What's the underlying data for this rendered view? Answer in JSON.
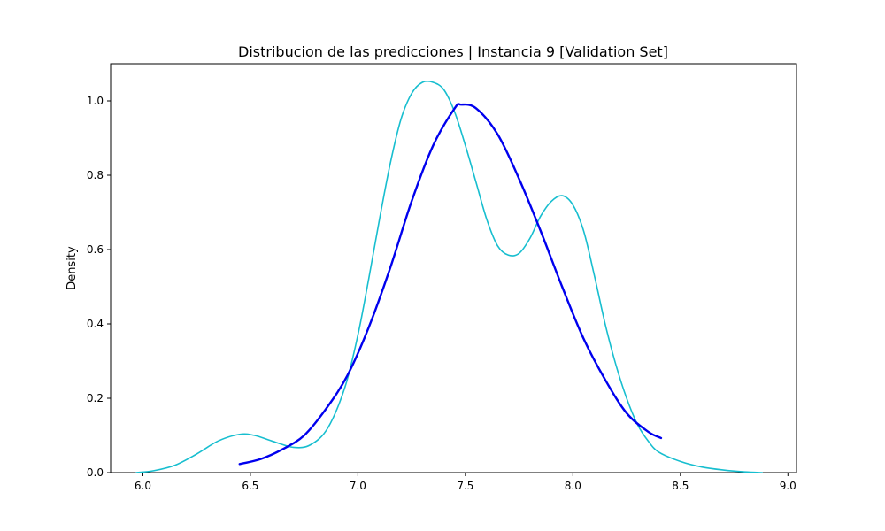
{
  "chart_data": {
    "type": "line",
    "title": "Distribucion de las predicciones | Instancia 9 [Validation Set]",
    "xlabel": "",
    "ylabel": "Density",
    "xlim": [
      5.85,
      9.04
    ],
    "ylim": [
      0,
      1.1
    ],
    "xticks": [
      6.0,
      6.5,
      7.0,
      7.5,
      8.0,
      8.5,
      9.0
    ],
    "xtick_labels": [
      "6.0",
      "6.5",
      "7.0",
      "7.5",
      "8.0",
      "8.5",
      "9.0"
    ],
    "yticks": [
      0.0,
      0.2,
      0.4,
      0.6,
      0.8,
      1.0
    ],
    "ytick_labels": [
      "0.0",
      "0.2",
      "0.4",
      "0.6",
      "0.8",
      "1.0"
    ],
    "grid": false,
    "series": [
      {
        "color": "#17becf",
        "kind": "kde",
        "points": [
          [
            5.97,
            0.0
          ],
          [
            6.05,
            0.005
          ],
          [
            6.15,
            0.02
          ],
          [
            6.25,
            0.05
          ],
          [
            6.35,
            0.085
          ],
          [
            6.45,
            0.103
          ],
          [
            6.52,
            0.1
          ],
          [
            6.6,
            0.085
          ],
          [
            6.7,
            0.068
          ],
          [
            6.78,
            0.075
          ],
          [
            6.86,
            0.12
          ],
          [
            6.94,
            0.23
          ],
          [
            7.0,
            0.37
          ],
          [
            7.05,
            0.52
          ],
          [
            7.1,
            0.68
          ],
          [
            7.15,
            0.83
          ],
          [
            7.2,
            0.95
          ],
          [
            7.25,
            1.02
          ],
          [
            7.3,
            1.05
          ],
          [
            7.35,
            1.05
          ],
          [
            7.4,
            1.03
          ],
          [
            7.45,
            0.97
          ],
          [
            7.5,
            0.88
          ],
          [
            7.55,
            0.78
          ],
          [
            7.6,
            0.68
          ],
          [
            7.65,
            0.61
          ],
          [
            7.7,
            0.585
          ],
          [
            7.75,
            0.59
          ],
          [
            7.8,
            0.63
          ],
          [
            7.85,
            0.69
          ],
          [
            7.9,
            0.73
          ],
          [
            7.95,
            0.745
          ],
          [
            8.0,
            0.72
          ],
          [
            8.05,
            0.65
          ],
          [
            8.1,
            0.53
          ],
          [
            8.15,
            0.4
          ],
          [
            8.2,
            0.29
          ],
          [
            8.25,
            0.2
          ],
          [
            8.3,
            0.13
          ],
          [
            8.35,
            0.085
          ],
          [
            8.4,
            0.055
          ],
          [
            8.5,
            0.03
          ],
          [
            8.6,
            0.015
          ],
          [
            8.7,
            0.007
          ],
          [
            8.8,
            0.002
          ],
          [
            8.88,
            0.0
          ]
        ]
      },
      {
        "color": "#0000ee",
        "kind": "normal-fit",
        "mean": 7.48,
        "std": 0.402,
        "x_range": [
          6.45,
          8.41
        ],
        "points": [
          [
            6.45,
            0.023
          ],
          [
            6.55,
            0.037
          ],
          [
            6.65,
            0.063
          ],
          [
            6.75,
            0.1
          ],
          [
            6.85,
            0.17
          ],
          [
            6.95,
            0.26
          ],
          [
            7.05,
            0.39
          ],
          [
            7.15,
            0.55
          ],
          [
            7.25,
            0.73
          ],
          [
            7.35,
            0.88
          ],
          [
            7.45,
            0.98
          ],
          [
            7.48,
            0.99
          ],
          [
            7.55,
            0.98
          ],
          [
            7.65,
            0.91
          ],
          [
            7.75,
            0.79
          ],
          [
            7.85,
            0.65
          ],
          [
            7.95,
            0.5
          ],
          [
            8.05,
            0.36
          ],
          [
            8.15,
            0.25
          ],
          [
            8.25,
            0.16
          ],
          [
            8.35,
            0.11
          ],
          [
            8.41,
            0.093
          ]
        ]
      }
    ]
  }
}
